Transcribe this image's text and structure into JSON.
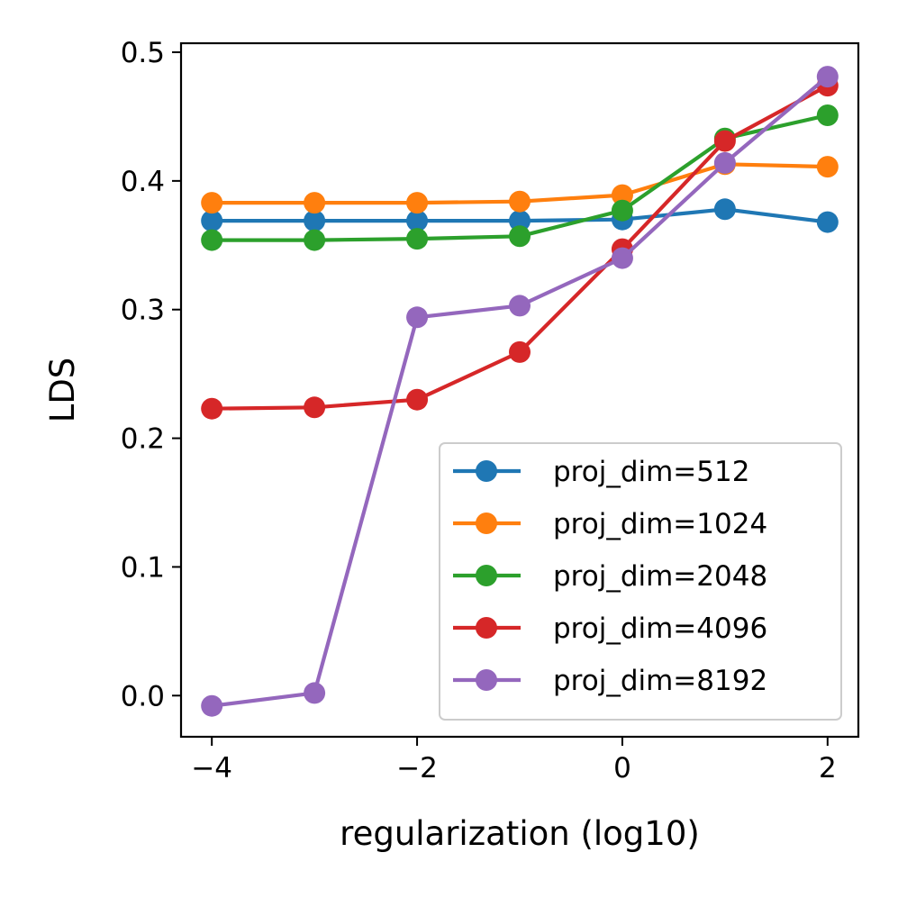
{
  "chart_data": {
    "type": "line",
    "title": "",
    "xlabel": "regularization (log10)",
    "ylabel": "LDS",
    "x": [
      -4,
      -3,
      -2,
      -1,
      0,
      1,
      2
    ],
    "xlim": [
      -4.3,
      2.3
    ],
    "ylim": [
      -0.032,
      0.507
    ],
    "xticks": [
      -4,
      -2,
      0,
      2
    ],
    "xtick_labels": [
      "−4",
      "−2",
      "0",
      "2"
    ],
    "yticks": [
      0.0,
      0.1,
      0.2,
      0.3,
      0.4,
      0.5
    ],
    "ytick_labels": [
      "0.0",
      "0.1",
      "0.2",
      "0.3",
      "0.4",
      "0.5"
    ],
    "grid": false,
    "legend_position": "bottom-right",
    "series": [
      {
        "name": "proj_dim=512",
        "color": "#1f77b4",
        "values": [
          0.369,
          0.369,
          0.369,
          0.369,
          0.37,
          0.378,
          0.368
        ]
      },
      {
        "name": "proj_dim=1024",
        "color": "#ff7f0e",
        "values": [
          0.383,
          0.383,
          0.383,
          0.384,
          0.389,
          0.413,
          0.411
        ]
      },
      {
        "name": "proj_dim=2048",
        "color": "#2ca02c",
        "values": [
          0.354,
          0.354,
          0.355,
          0.357,
          0.377,
          0.433,
          0.451
        ]
      },
      {
        "name": "proj_dim=4096",
        "color": "#d62728",
        "values": [
          0.223,
          0.224,
          0.23,
          0.267,
          0.347,
          0.431,
          0.474
        ]
      },
      {
        "name": "proj_dim=8192",
        "color": "#9467bd",
        "values": [
          -0.008,
          0.002,
          0.294,
          0.303,
          0.34,
          0.414,
          0.481
        ]
      }
    ]
  }
}
